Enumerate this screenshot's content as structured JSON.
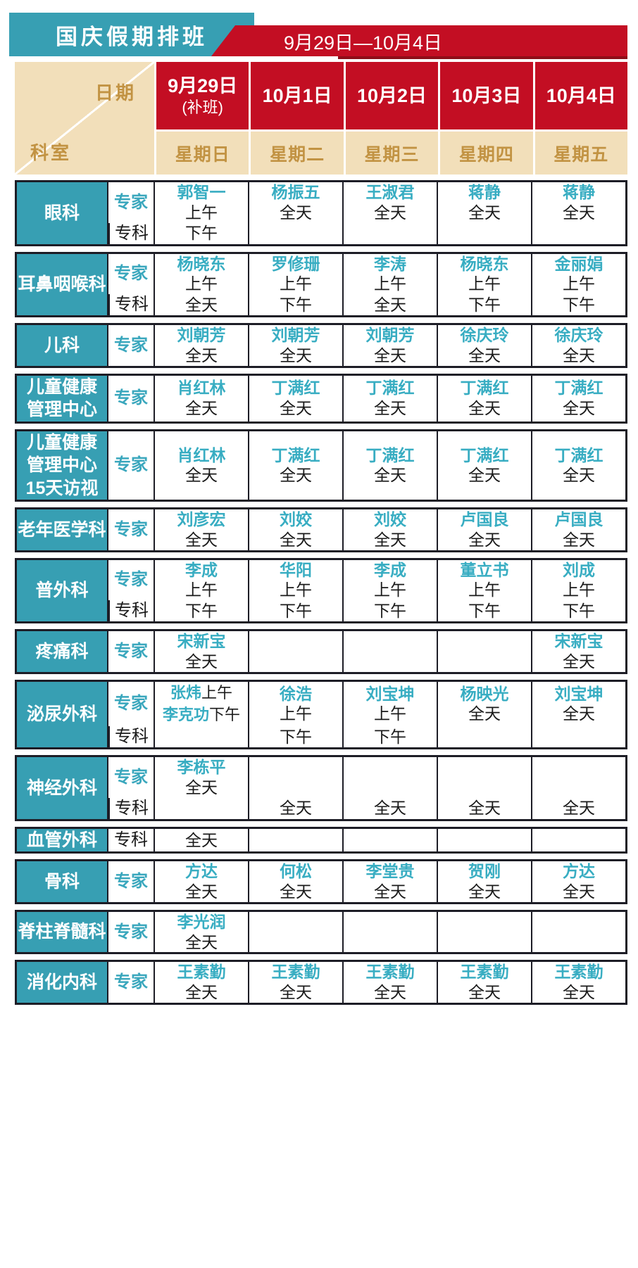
{
  "title": "国庆假期排班",
  "date_range": "9月29日—10月4日",
  "colors": {
    "teal": "#379fb3",
    "red": "#c30e23",
    "dark_red": "#8e0d18",
    "tan": "#f2dfba",
    "gold_text": "#c29343",
    "doctor_name_teal": "#38adc2",
    "border": "#1d1d26"
  },
  "header": {
    "corner_date_label": "日期",
    "corner_dept_label": "科室",
    "columns": [
      {
        "date": "9月29日",
        "note": "(补班)",
        "weekday": "星期日"
      },
      {
        "date": "10月1日",
        "note": "",
        "weekday": "星期二"
      },
      {
        "date": "10月2日",
        "note": "",
        "weekday": "星期三"
      },
      {
        "date": "10月3日",
        "note": "",
        "weekday": "星期四"
      },
      {
        "date": "10月4日",
        "note": "",
        "weekday": "星期五"
      }
    ]
  },
  "row_type_labels": {
    "expert": "专家",
    "specialist": "专科"
  },
  "departments": [
    {
      "name_lines": [
        "眼科"
      ],
      "rows": [
        {
          "label": "专家",
          "cells": [
            {
              "name": "郭智一",
              "time": "上午"
            },
            {
              "name": "杨振五",
              "time": "全天"
            },
            {
              "name": "王淑君",
              "time": "全天"
            },
            {
              "name": "蒋静",
              "time": "全天"
            },
            {
              "name": "蒋静",
              "time": "全天"
            }
          ]
        },
        {
          "label": "专科",
          "cells": [
            {
              "time": "下午"
            },
            {},
            {},
            {},
            {}
          ]
        }
      ]
    },
    {
      "name_lines": [
        "耳鼻咽喉科"
      ],
      "rows": [
        {
          "label": "专家",
          "cells": [
            {
              "name": "杨晓东",
              "time": "上午"
            },
            {
              "name": "罗修珊",
              "time": "上午"
            },
            {
              "name": "李涛",
              "time": "上午"
            },
            {
              "name": "杨晓东",
              "time": "上午"
            },
            {
              "name": "金丽娟",
              "time": "上午"
            }
          ]
        },
        {
          "label": "专科",
          "cells": [
            {
              "time": "全天"
            },
            {
              "time": "下午"
            },
            {
              "time": "全天"
            },
            {
              "time": "下午"
            },
            {
              "time": "下午"
            }
          ]
        }
      ]
    },
    {
      "name_lines": [
        "儿科"
      ],
      "rows": [
        {
          "label": "专家",
          "cells": [
            {
              "name": "刘朝芳",
              "time": "全天"
            },
            {
              "name": "刘朝芳",
              "time": "全天"
            },
            {
              "name": "刘朝芳",
              "time": "全天"
            },
            {
              "name": "徐庆玲",
              "time": "全天"
            },
            {
              "name": "徐庆玲",
              "time": "全天"
            }
          ]
        }
      ]
    },
    {
      "name_lines": [
        "儿童健康",
        "管理中心"
      ],
      "rows": [
        {
          "label": "专家",
          "cells": [
            {
              "name": "肖红林",
              "time": "全天"
            },
            {
              "name": "丁满红",
              "time": "全天"
            },
            {
              "name": "丁满红",
              "time": "全天"
            },
            {
              "name": "丁满红",
              "time": "全天"
            },
            {
              "name": "丁满红",
              "time": "全天"
            }
          ]
        }
      ]
    },
    {
      "name_lines": [
        "儿童健康",
        "管理中心",
        "15天访视"
      ],
      "tall": true,
      "rows": [
        {
          "label": "专家",
          "cells": [
            {
              "name": "肖红林",
              "time": "全天"
            },
            {
              "name": "丁满红",
              "time": "全天"
            },
            {
              "name": "丁满红",
              "time": "全天"
            },
            {
              "name": "丁满红",
              "time": "全天"
            },
            {
              "name": "丁满红",
              "time": "全天"
            }
          ]
        }
      ]
    },
    {
      "name_lines": [
        "老年医学科"
      ],
      "rows": [
        {
          "label": "专家",
          "cells": [
            {
              "name": "刘彦宏",
              "time": "全天"
            },
            {
              "name": "刘姣",
              "time": "全天"
            },
            {
              "name": "刘姣",
              "time": "全天"
            },
            {
              "name": "卢国良",
              "time": "全天"
            },
            {
              "name": "卢国良",
              "time": "全天"
            }
          ]
        }
      ]
    },
    {
      "name_lines": [
        "普外科"
      ],
      "rows": [
        {
          "label": "专家",
          "cells": [
            {
              "name": "李成",
              "time": "上午"
            },
            {
              "name": "华阳",
              "time": "上午"
            },
            {
              "name": "李成",
              "time": "上午"
            },
            {
              "name": "董立书",
              "time": "上午"
            },
            {
              "name": "刘成",
              "time": "上午"
            }
          ]
        },
        {
          "label": "专科",
          "cells": [
            {
              "time": "下午"
            },
            {
              "time": "下午"
            },
            {
              "time": "下午"
            },
            {
              "time": "下午"
            },
            {
              "time": "下午"
            }
          ]
        }
      ]
    },
    {
      "name_lines": [
        "疼痛科"
      ],
      "rows": [
        {
          "label": "专家",
          "cells": [
            {
              "name": "宋新宝",
              "time": "全天"
            },
            {},
            {},
            {},
            {
              "name": "宋新宝",
              "time": "全天"
            }
          ]
        }
      ]
    },
    {
      "name_lines": [
        "泌尿外科"
      ],
      "rows": [
        {
          "label": "专家",
          "cells": [
            {
              "pairs": [
                {
                  "name": "张炜",
                  "time": "上午"
                },
                {
                  "name": "李克功",
                  "time": "下午"
                }
              ]
            },
            {
              "name": "徐浩",
              "time": "上午"
            },
            {
              "name": "刘宝坤",
              "time": "上午"
            },
            {
              "name": "杨映光",
              "time": "全天"
            },
            {
              "name": "刘宝坤",
              "time": "全天"
            }
          ]
        },
        {
          "label": "专科",
          "cells": [
            {},
            {
              "time": "下午"
            },
            {
              "time": "下午"
            },
            {},
            {}
          ]
        }
      ]
    },
    {
      "name_lines": [
        "神经外科"
      ],
      "rows": [
        {
          "label": "专家",
          "cells": [
            {
              "name": "李栋平",
              "time": "全天"
            },
            {},
            {},
            {},
            {}
          ]
        },
        {
          "label": "专科",
          "cells": [
            {},
            {
              "time": "全天"
            },
            {
              "time": "全天"
            },
            {
              "time": "全天"
            },
            {
              "time": "全天"
            }
          ]
        }
      ]
    },
    {
      "name_lines": [
        "血管外科"
      ],
      "rows": [
        {
          "label": "专科",
          "cells": [
            {
              "time": "全天"
            },
            {},
            {},
            {},
            {}
          ]
        }
      ]
    },
    {
      "name_lines": [
        "骨科"
      ],
      "rows": [
        {
          "label": "专家",
          "cells": [
            {
              "name": "方达",
              "time": "全天"
            },
            {
              "name": "何松",
              "time": "全天"
            },
            {
              "name": "李堂贵",
              "time": "全天"
            },
            {
              "name": "贺刚",
              "time": "全天"
            },
            {
              "name": "方达",
              "time": "全天"
            }
          ]
        }
      ]
    },
    {
      "name_lines": [
        "脊柱脊髓科"
      ],
      "rows": [
        {
          "label": "专家",
          "cells": [
            {
              "name": "李光润",
              "time": "全天"
            },
            {},
            {},
            {},
            {}
          ]
        }
      ]
    },
    {
      "name_lines": [
        "消化内科"
      ],
      "rows": [
        {
          "label": "专家",
          "cells": [
            {
              "name": "王素勤",
              "time": "全天"
            },
            {
              "name": "王素勤",
              "time": "全天"
            },
            {
              "name": "王素勤",
              "time": "全天"
            },
            {
              "name": "王素勤",
              "time": "全天"
            },
            {
              "name": "王素勤",
              "time": "全天"
            }
          ]
        }
      ]
    }
  ]
}
